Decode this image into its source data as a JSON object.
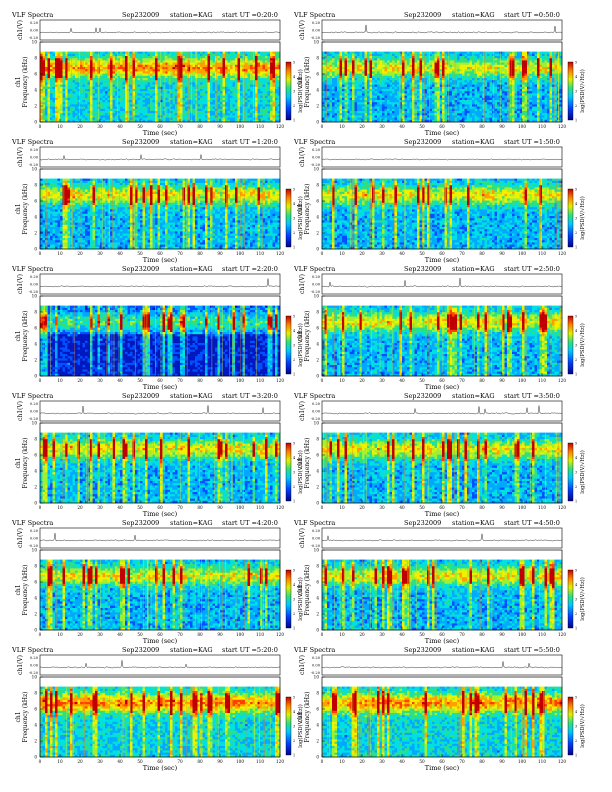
{
  "page": {
    "left_colorbar": {
      "label": "log(PSD(V/√Hz))",
      "ticks": [
        "5",
        "4",
        "3",
        "2",
        "1"
      ]
    },
    "right_colorbar": {
      "label": "log(PSD(V/√Hz))",
      "ticks": [
        "5",
        "4",
        "3",
        "2",
        "1"
      ]
    }
  },
  "chart_data": [
    {
      "type": "heatmap",
      "title": "VLF Spectra",
      "date": "Sep232009",
      "station": "station=KAG",
      "start": "start UT =0:20:0",
      "ylabel": "Frequency (kHz)",
      "ylabel_channel": "ch1",
      "ylabel_wave": "ch1(V)",
      "xlabel": "Time (sec)",
      "xlim": [
        0,
        120
      ],
      "ylim": [
        0,
        10
      ],
      "x_ticks": [
        "0",
        "10",
        "20",
        "30",
        "40",
        "50",
        "60",
        "70",
        "80",
        "90",
        "100",
        "110",
        "120"
      ],
      "y_ticks": [
        "0",
        "2",
        "4",
        "6",
        "8",
        "10"
      ],
      "wave_ticks": [
        "0.20",
        "0.00",
        "-0.20"
      ],
      "colorbar_range": [
        1,
        5
      ],
      "intensity": "high"
    },
    {
      "type": "heatmap",
      "title": "VLF Spectra",
      "date": "Sep232009",
      "station": "station=KAG",
      "start": "start UT =0:50:0",
      "ylabel": "Frequency (kHz)",
      "ylabel_channel": "ch1",
      "ylabel_wave": "ch1(V)",
      "xlabel": "Time (sec)",
      "xlim": [
        0,
        120
      ],
      "ylim": [
        0,
        10
      ],
      "x_ticks": [
        "0",
        "10",
        "20",
        "30",
        "40",
        "50",
        "60",
        "70",
        "80",
        "90",
        "100",
        "110",
        "120"
      ],
      "y_ticks": [
        "0",
        "2",
        "4",
        "6",
        "8",
        "10"
      ],
      "wave_ticks": [
        "0.20",
        "0.00",
        "-0.20"
      ],
      "colorbar_range": [
        1,
        5
      ],
      "intensity": "medium"
    },
    {
      "type": "heatmap",
      "title": "VLF Spectra",
      "date": "Sep232009",
      "station": "station=KAG",
      "start": "start UT =1:20:0",
      "ylabel": "Frequency (kHz)",
      "ylabel_channel": "ch1",
      "ylabel_wave": "ch1(V)",
      "xlabel": "Time (sec)",
      "xlim": [
        0,
        120
      ],
      "ylim": [
        0,
        10
      ],
      "x_ticks": [
        "0",
        "10",
        "20",
        "30",
        "40",
        "50",
        "60",
        "70",
        "80",
        "90",
        "100",
        "110",
        "120"
      ],
      "y_ticks": [
        "0",
        "2",
        "4",
        "6",
        "8",
        "10"
      ],
      "wave_ticks": [
        "0.20",
        "0.00",
        "-0.20"
      ],
      "colorbar_range": [
        1,
        5
      ],
      "intensity": "medium"
    },
    {
      "type": "heatmap",
      "title": "VLF Spectra",
      "date": "Sep232009",
      "station": "station=KAG",
      "start": "start UT =1:50:0",
      "ylabel": "Frequency (kHz)",
      "ylabel_channel": "ch1",
      "ylabel_wave": "ch1(V)",
      "xlabel": "Time (sec)",
      "xlim": [
        0,
        120
      ],
      "ylim": [
        0,
        10
      ],
      "x_ticks": [
        "0",
        "10",
        "20",
        "30",
        "40",
        "50",
        "60",
        "70",
        "80",
        "90",
        "100",
        "110",
        "120"
      ],
      "y_ticks": [
        "0",
        "2",
        "4",
        "6",
        "8",
        "10"
      ],
      "wave_ticks": [
        "0.20",
        "0.00",
        "-0.20"
      ],
      "colorbar_range": [
        1,
        5
      ],
      "intensity": "medium"
    },
    {
      "type": "heatmap",
      "title": "VLF Spectra",
      "date": "Sep232009",
      "station": "station=KAG",
      "start": "start UT =2:20:0",
      "ylabel": "Frequency (kHz)",
      "ylabel_channel": "ch1",
      "ylabel_wave": "ch1(V)",
      "xlabel": "Time (sec)",
      "xlim": [
        0,
        120
      ],
      "ylim": [
        0,
        10
      ],
      "x_ticks": [
        "0",
        "10",
        "20",
        "30",
        "40",
        "50",
        "60",
        "70",
        "80",
        "90",
        "100",
        "110",
        "120"
      ],
      "y_ticks": [
        "0",
        "2",
        "4",
        "6",
        "8",
        "10"
      ],
      "wave_ticks": [
        "0.20",
        "0.00",
        "-0.20"
      ],
      "colorbar_range": [
        1,
        5
      ],
      "intensity": "low"
    },
    {
      "type": "heatmap",
      "title": "VLF Spectra",
      "date": "Sep232009",
      "station": "station=KAG",
      "start": "start UT =2:50:0",
      "ylabel": "Frequency (kHz)",
      "ylabel_channel": "ch1",
      "ylabel_wave": "ch1(V)",
      "xlabel": "Time (sec)",
      "xlim": [
        0,
        120
      ],
      "ylim": [
        0,
        10
      ],
      "x_ticks": [
        "0",
        "10",
        "20",
        "30",
        "40",
        "50",
        "60",
        "70",
        "80",
        "90",
        "100",
        "110",
        "120"
      ],
      "y_ticks": [
        "0",
        "2",
        "4",
        "6",
        "8",
        "10"
      ],
      "wave_ticks": [
        "0.20",
        "0.00",
        "-0.20"
      ],
      "colorbar_range": [
        1,
        5
      ],
      "intensity": "medium"
    },
    {
      "type": "heatmap",
      "title": "VLF Spectra",
      "date": "Sep232009",
      "station": "station=KAG",
      "start": "start UT =3:20:0",
      "ylabel": "Frequency (kHz)",
      "ylabel_channel": "ch1",
      "ylabel_wave": "ch1(V)",
      "xlabel": "Time (sec)",
      "xlim": [
        0,
        120
      ],
      "ylim": [
        0,
        10
      ],
      "x_ticks": [
        "0",
        "10",
        "20",
        "30",
        "40",
        "50",
        "60",
        "70",
        "80",
        "90",
        "100",
        "110",
        "120"
      ],
      "y_ticks": [
        "0",
        "2",
        "4",
        "6",
        "8",
        "10"
      ],
      "wave_ticks": [
        "0.20",
        "0.00",
        "-0.20"
      ],
      "colorbar_range": [
        1,
        5
      ],
      "intensity": "medium"
    },
    {
      "type": "heatmap",
      "title": "VLF Spectra",
      "date": "Sep232009",
      "station": "station=KAG",
      "start": "start UT =3:50:0",
      "ylabel": "Frequency (kHz)",
      "ylabel_channel": "ch1",
      "ylabel_wave": "ch1(V)",
      "xlabel": "Time (sec)",
      "xlim": [
        0,
        120
      ],
      "ylim": [
        0,
        10
      ],
      "x_ticks": [
        "0",
        "10",
        "20",
        "30",
        "40",
        "50",
        "60",
        "70",
        "80",
        "90",
        "100",
        "110",
        "120"
      ],
      "y_ticks": [
        "0",
        "2",
        "4",
        "6",
        "8",
        "10"
      ],
      "wave_ticks": [
        "0.20",
        "0.00",
        "-0.20"
      ],
      "colorbar_range": [
        1,
        5
      ],
      "intensity": "medium"
    },
    {
      "type": "heatmap",
      "title": "VLF Spectra",
      "date": "Sep232009",
      "station": "station=KAG",
      "start": "start UT =4:20:0",
      "ylabel": "Frequency (kHz)",
      "ylabel_channel": "ch1",
      "ylabel_wave": "ch1(V)",
      "xlabel": "Time (sec)",
      "xlim": [
        0,
        120
      ],
      "ylim": [
        0,
        10
      ],
      "x_ticks": [
        "0",
        "10",
        "20",
        "30",
        "40",
        "50",
        "60",
        "70",
        "80",
        "90",
        "100",
        "110",
        "120"
      ],
      "y_ticks": [
        "0",
        "2",
        "4",
        "6",
        "8",
        "10"
      ],
      "wave_ticks": [
        "0.20",
        "0.00",
        "-0.20"
      ],
      "colorbar_range": [
        1,
        5
      ],
      "intensity": "medium"
    },
    {
      "type": "heatmap",
      "title": "VLF Spectra",
      "date": "Sep232009",
      "station": "station=KAG",
      "start": "start UT =4:50:0",
      "ylabel": "Frequency (kHz)",
      "ylabel_channel": "ch1",
      "ylabel_wave": "ch1(V)",
      "xlabel": "Time (sec)",
      "xlim": [
        0,
        120
      ],
      "ylim": [
        0,
        10
      ],
      "x_ticks": [
        "0",
        "10",
        "20",
        "30",
        "40",
        "50",
        "60",
        "70",
        "80",
        "90",
        "100",
        "110",
        "120"
      ],
      "y_ticks": [
        "0",
        "2",
        "4",
        "6",
        "8",
        "10"
      ],
      "wave_ticks": [
        "0.20",
        "0.00",
        "-0.20"
      ],
      "colorbar_range": [
        1,
        5
      ],
      "intensity": "medium"
    },
    {
      "type": "heatmap",
      "title": "VLF Spectra",
      "date": "Sep232009",
      "station": "station=KAG",
      "start": "start UT =5:20:0",
      "ylabel": "Frequency (kHz)",
      "ylabel_channel": "ch1",
      "ylabel_wave": "ch1(V)",
      "xlabel": "Time (sec)",
      "xlim": [
        0,
        120
      ],
      "ylim": [
        0,
        10
      ],
      "x_ticks": [
        "0",
        "10",
        "20",
        "30",
        "40",
        "50",
        "60",
        "70",
        "80",
        "90",
        "100",
        "110",
        "120"
      ],
      "y_ticks": [
        "0",
        "2",
        "4",
        "6",
        "8",
        "10"
      ],
      "wave_ticks": [
        "0.20",
        "0.00",
        "-0.20"
      ],
      "colorbar_range": [
        1,
        5
      ],
      "intensity": "high"
    },
    {
      "type": "heatmap",
      "title": "VLF Spectra",
      "date": "Sep232009",
      "station": "station=KAG",
      "start": "start UT =5:50:0",
      "ylabel": "Frequency (kHz)",
      "ylabel_channel": "ch1",
      "ylabel_wave": "ch1(V)",
      "xlabel": "Time (sec)",
      "xlim": [
        0,
        120
      ],
      "ylim": [
        0,
        10
      ],
      "x_ticks": [
        "0",
        "10",
        "20",
        "30",
        "40",
        "50",
        "60",
        "70",
        "80",
        "90",
        "100",
        "110",
        "120"
      ],
      "y_ticks": [
        "0",
        "2",
        "4",
        "6",
        "8",
        "10"
      ],
      "wave_ticks": [
        "0.20",
        "0.00",
        "-0.20"
      ],
      "colorbar_range": [
        1,
        5
      ],
      "intensity": "high"
    }
  ]
}
